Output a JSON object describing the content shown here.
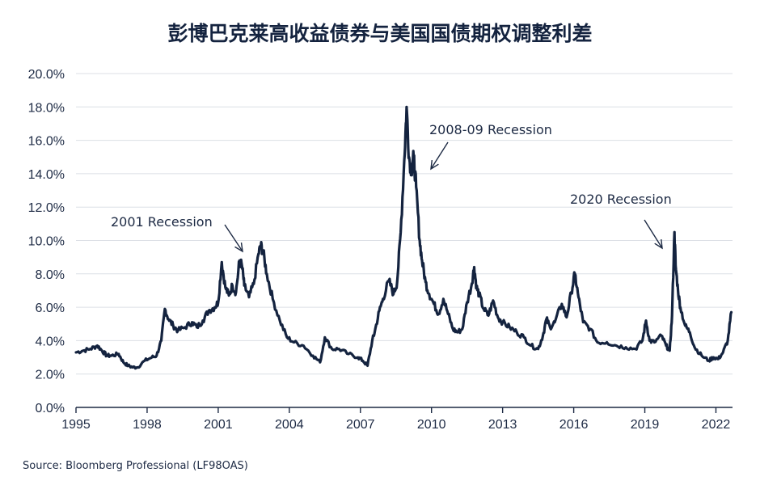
{
  "source": "Source: Bloomberg Professional (LF98OAS)",
  "chart_data": {
    "type": "line",
    "title": "彭博巴克莱高收益债券与美国国债期权调整利差",
    "xlabel": "",
    "ylabel": "",
    "xlim": [
      1995,
      2022.7
    ],
    "ylim": [
      0,
      20
    ],
    "x_ticks": [
      1995,
      1998,
      2001,
      2004,
      2007,
      2010,
      2013,
      2016,
      2019,
      2022
    ],
    "x_tick_labels": [
      "1995",
      "1998",
      "2001",
      "2004",
      "2007",
      "2010",
      "2013",
      "2016",
      "2019",
      "2022"
    ],
    "y_ticks": [
      0,
      2,
      4,
      6,
      8,
      10,
      12,
      14,
      16,
      18,
      20
    ],
    "y_tick_labels": [
      "0.0%",
      "2.0%",
      "4.0%",
      "6.0%",
      "8.0%",
      "10.0%",
      "12.0%",
      "14.0%",
      "16.0%",
      "18.0%",
      "20.0%"
    ],
    "grid": true,
    "line_color": "#14233f",
    "annotations": [
      {
        "text": "2001 Recession",
        "x": 2001.8,
        "y": 9.3
      },
      {
        "text": "2008-09 Recession",
        "x": 2009.9,
        "y": 14.2
      },
      {
        "text": "2020 Recession",
        "x": 2020.7,
        "y": 9.4
      }
    ],
    "series": [
      {
        "x": [
          1995.0,
          1995.3,
          1995.6,
          1995.9,
          1996.1,
          1996.3,
          1996.5,
          1996.8,
          1997.0,
          1997.2,
          1997.4,
          1997.6,
          1997.9,
          1998.2,
          1998.4,
          1998.6,
          1998.75,
          1998.9,
          1999.1,
          1999.3,
          1999.6,
          1999.9,
          2000.1,
          2000.35,
          2000.6,
          2000.85,
          2001.0,
          2001.15,
          2001.3,
          2001.45,
          2001.6,
          2001.75,
          2001.9,
          2002.0,
          2002.1,
          2002.3,
          2002.5,
          2002.7,
          2002.8,
          2002.9,
          2003.05,
          2003.3,
          2003.6,
          2003.9,
          2004.2,
          2004.6,
          2005.0,
          2005.3,
          2005.5,
          2005.8,
          2006.1,
          2006.5,
          2006.9,
          2007.1,
          2007.3,
          2007.5,
          2007.6,
          2007.8,
          2007.95,
          2008.2,
          2008.4,
          2008.55,
          2008.7,
          2008.85,
          2008.95,
          2009.05,
          2009.15,
          2009.25,
          2009.35,
          2009.5,
          2009.6,
          2009.75,
          2009.9,
          2010.1,
          2010.3,
          2010.5,
          2010.7,
          2010.9,
          2011.1,
          2011.3,
          2011.5,
          2011.7,
          2011.8,
          2011.9,
          2012.0,
          2012.2,
          2012.4,
          2012.6,
          2012.8,
          2013.0,
          2013.3,
          2013.6,
          2013.9,
          2014.2,
          2014.5,
          2014.7,
          2014.85,
          2015.0,
          2015.2,
          2015.5,
          2015.7,
          2015.9,
          2016.05,
          2016.2,
          2016.4,
          2016.7,
          2017.0,
          2017.4,
          2017.8,
          2018.2,
          2018.6,
          2018.9,
          2019.05,
          2019.2,
          2019.4,
          2019.7,
          2019.9,
          2020.05,
          2020.15,
          2020.25,
          2020.3,
          2020.4,
          2020.5,
          2020.7,
          2020.9,
          2021.1,
          2021.4,
          2021.7,
          2021.9,
          2022.1,
          2022.3,
          2022.5,
          2022.65
        ],
        "y": [
          3.3,
          3.4,
          3.5,
          3.7,
          3.4,
          3.1,
          3.1,
          3.2,
          2.7,
          2.5,
          2.4,
          2.4,
          2.8,
          3.0,
          3.1,
          4.0,
          5.9,
          5.3,
          4.9,
          4.6,
          4.8,
          5.1,
          4.8,
          5.2,
          5.8,
          6.0,
          6.3,
          8.7,
          7.2,
          6.7,
          7.3,
          6.9,
          8.8,
          8.5,
          7.3,
          6.6,
          7.4,
          9.2,
          9.7,
          9.3,
          8.0,
          6.5,
          5.2,
          4.2,
          3.9,
          3.7,
          3.1,
          2.7,
          4.2,
          3.5,
          3.5,
          3.2,
          3.0,
          2.8,
          2.5,
          4.0,
          4.5,
          5.8,
          6.5,
          7.6,
          6.8,
          7.5,
          10.5,
          14.8,
          18.0,
          15.0,
          14.2,
          15.0,
          13.2,
          10.0,
          8.8,
          7.5,
          6.8,
          6.2,
          5.6,
          6.5,
          5.6,
          4.7,
          4.5,
          4.7,
          6.3,
          7.4,
          8.4,
          7.2,
          6.8,
          5.9,
          5.5,
          6.4,
          5.4,
          5.1,
          4.8,
          4.5,
          4.2,
          3.7,
          3.5,
          4.3,
          5.3,
          4.8,
          5.1,
          6.2,
          5.4,
          6.9,
          8.0,
          6.6,
          5.1,
          4.7,
          3.9,
          3.9,
          3.7,
          3.6,
          3.5,
          4.0,
          5.2,
          4.0,
          3.9,
          4.3,
          3.7,
          3.4,
          5.5,
          10.5,
          8.5,
          7.0,
          6.0,
          4.9,
          4.5,
          3.6,
          3.1,
          2.8,
          3.0,
          2.9,
          3.3,
          4.0,
          5.7
        ]
      }
    ]
  }
}
